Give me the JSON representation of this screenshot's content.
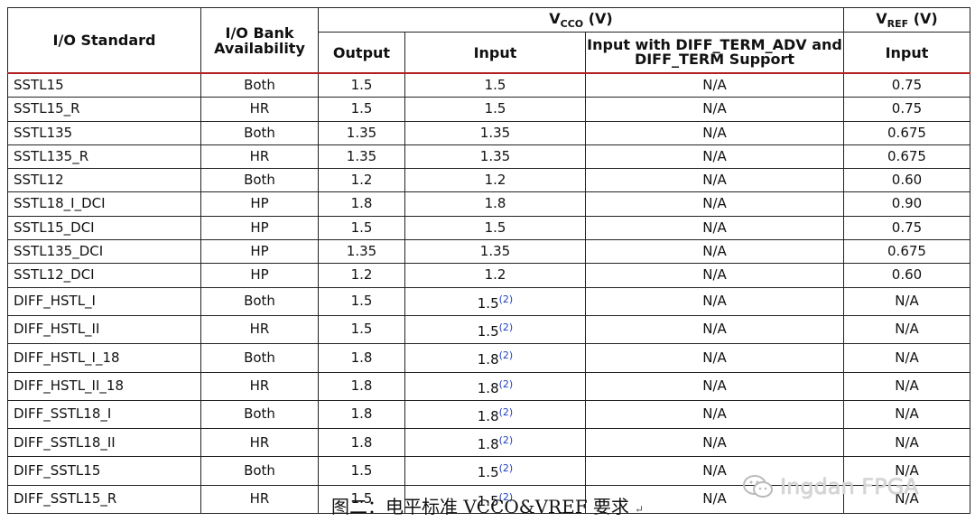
{
  "header": {
    "io_standard": "I/O Standard",
    "bank_avail": "I/O Bank Availability",
    "vcco_main": "V",
    "vcco_sub": "CCO",
    "vcco_unit": "(V)",
    "vref_main": "V",
    "vref_sub": "REF",
    "vref_unit": "(V)",
    "output": "Output",
    "input": "Input",
    "input_diff": "Input with DIFF_TERM_ADV and DIFF_TERM Support",
    "vref_input": "Input"
  },
  "rows": [
    {
      "std": "SSTL15",
      "bank": "Both",
      "out": "1.5",
      "in": "1.5",
      "note": "",
      "diff": "N/A",
      "vref": "0.75"
    },
    {
      "std": "SSTL15_R",
      "bank": "HR",
      "out": "1.5",
      "in": "1.5",
      "note": "",
      "diff": "N/A",
      "vref": "0.75"
    },
    {
      "std": "SSTL135",
      "bank": "Both",
      "out": "1.35",
      "in": "1.35",
      "note": "",
      "diff": "N/A",
      "vref": "0.675"
    },
    {
      "std": "SSTL135_R",
      "bank": "HR",
      "out": "1.35",
      "in": "1.35",
      "note": "",
      "diff": "N/A",
      "vref": "0.675"
    },
    {
      "std": "SSTL12",
      "bank": "Both",
      "out": "1.2",
      "in": "1.2",
      "note": "",
      "diff": "N/A",
      "vref": "0.60"
    },
    {
      "std": "SSTL18_I_DCI",
      "bank": "HP",
      "out": "1.8",
      "in": "1.8",
      "note": "",
      "diff": "N/A",
      "vref": "0.90"
    },
    {
      "std": "SSTL15_DCI",
      "bank": "HP",
      "out": "1.5",
      "in": "1.5",
      "note": "",
      "diff": "N/A",
      "vref": "0.75"
    },
    {
      "std": "SSTL135_DCI",
      "bank": "HP",
      "out": "1.35",
      "in": "1.35",
      "note": "",
      "diff": "N/A",
      "vref": "0.675"
    },
    {
      "std": "SSTL12_DCI",
      "bank": "HP",
      "out": "1.2",
      "in": "1.2",
      "note": "",
      "diff": "N/A",
      "vref": "0.60"
    },
    {
      "std": "DIFF_HSTL_I",
      "bank": "Both",
      "out": "1.5",
      "in": "1.5",
      "note": "(2)",
      "diff": "N/A",
      "vref": "N/A"
    },
    {
      "std": "DIFF_HSTL_II",
      "bank": "HR",
      "out": "1.5",
      "in": "1.5",
      "note": "(2)",
      "diff": "N/A",
      "vref": "N/A"
    },
    {
      "std": "DIFF_HSTL_I_18",
      "bank": "Both",
      "out": "1.8",
      "in": "1.8",
      "note": "(2)",
      "diff": "N/A",
      "vref": "N/A"
    },
    {
      "std": "DIFF_HSTL_II_18",
      "bank": "HR",
      "out": "1.8",
      "in": "1.8",
      "note": "(2)",
      "diff": "N/A",
      "vref": "N/A"
    },
    {
      "std": "DIFF_SSTL18_I",
      "bank": "Both",
      "out": "1.8",
      "in": "1.8",
      "note": "(2)",
      "diff": "N/A",
      "vref": "N/A"
    },
    {
      "std": "DIFF_SSTL18_II",
      "bank": "HR",
      "out": "1.8",
      "in": "1.8",
      "note": "(2)",
      "diff": "N/A",
      "vref": "N/A"
    },
    {
      "std": "DIFF_SSTL15",
      "bank": "Both",
      "out": "1.5",
      "in": "1.5",
      "note": "(2)",
      "diff": "N/A",
      "vref": "N/A"
    },
    {
      "std": "DIFF_SSTL15_R",
      "bank": "HR",
      "out": "1.5",
      "in": "1.5",
      "note": "(2)",
      "diff": "N/A",
      "vref": "N/A"
    }
  ],
  "caption": "图二：电平标准 VCCO&VREF 要求",
  "caption_mark": "↵",
  "watermark": "Ingdan FPGA"
}
